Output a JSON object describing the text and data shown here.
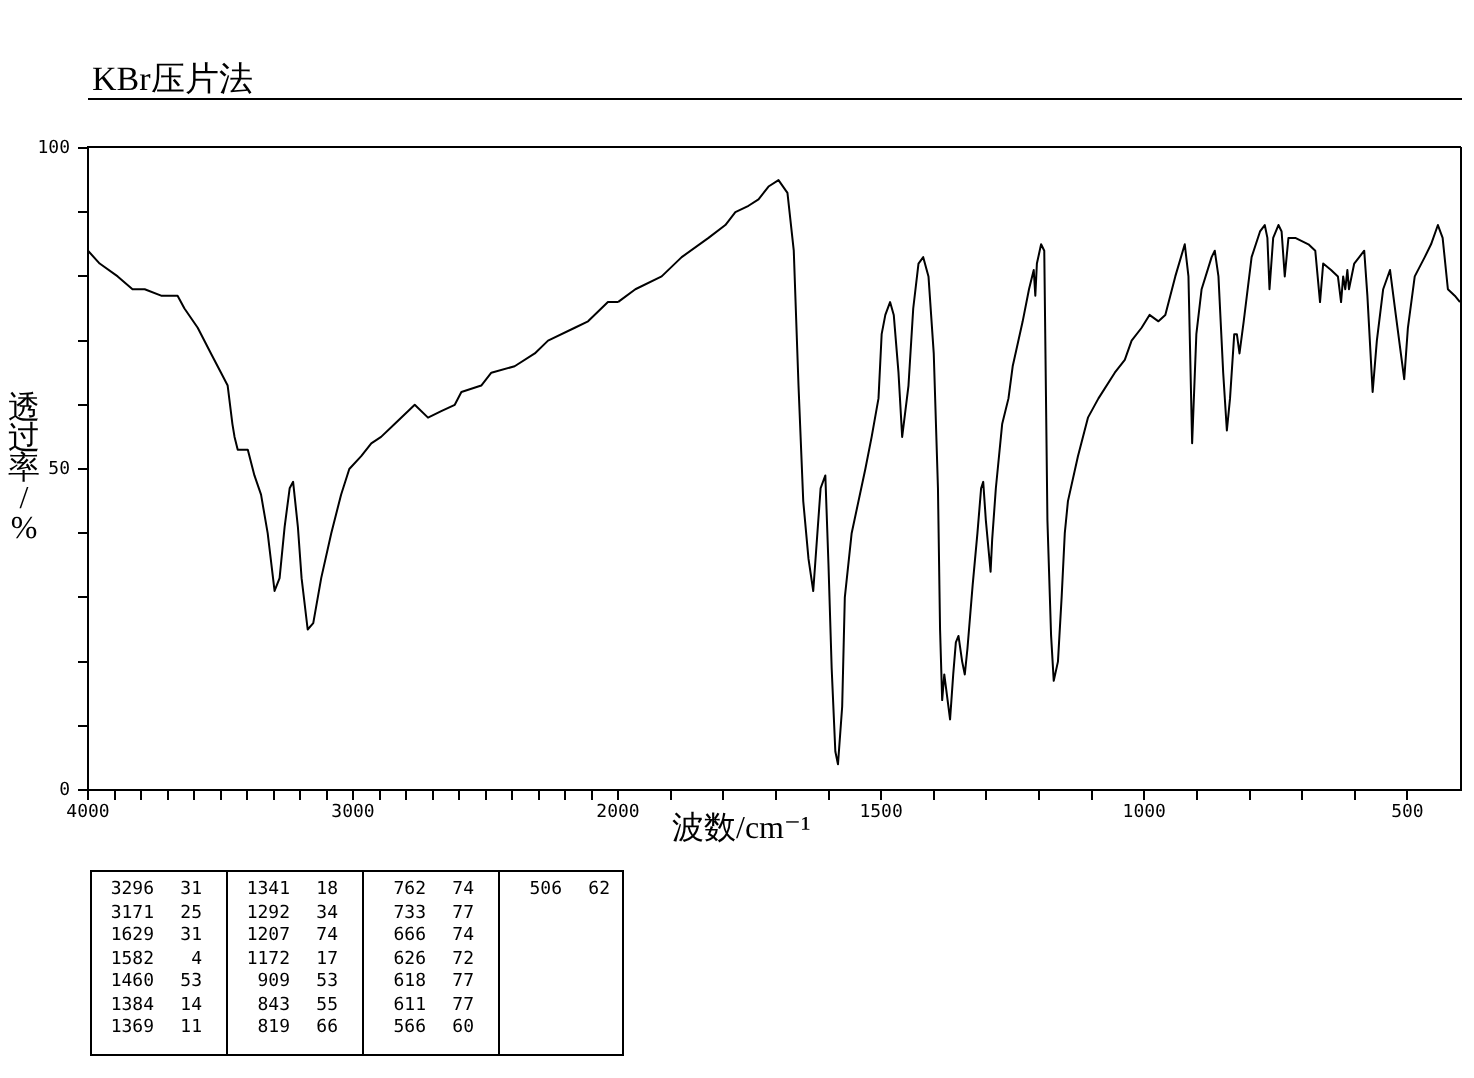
{
  "chart_data": [
    {
      "type": "line",
      "title": "KBr压片法",
      "ylabel": "透过率/%",
      "color": "#000000",
      "marker": "none",
      "line_style": "solid",
      "legend": false,
      "grid": false,
      "xlim": [
        4000,
        2000
      ],
      "ylim": [
        0,
        100
      ],
      "xticks": [
        4000,
        {
          "value": 3900,
          "label": null
        },
        {
          "value": 3800,
          "label": null
        },
        {
          "value": 3700,
          "label": null
        },
        {
          "value": 3600,
          "label": null
        },
        {
          "value": 3500,
          "label": null
        },
        {
          "value": 3400,
          "label": null
        },
        {
          "value": 3300,
          "label": null
        },
        {
          "value": 3200,
          "label": null
        },
        {
          "value": 3100,
          "label": null
        },
        3000,
        {
          "value": 2900,
          "label": null
        },
        {
          "value": 2800,
          "label": null
        },
        {
          "value": 2700,
          "label": null
        },
        {
          "value": 2600,
          "label": null
        },
        {
          "value": 2500,
          "label": null
        },
        {
          "value": 2400,
          "label": null
        },
        {
          "value": 2300,
          "label": null
        },
        {
          "value": 2200,
          "label": null
        },
        {
          "value": 2100,
          "label": null
        },
        2000
      ],
      "yticks": [
        0,
        {
          "value": 10,
          "label": null
        },
        {
          "value": 20,
          "label": null
        },
        {
          "value": 30,
          "label": null
        },
        {
          "value": 40,
          "label": null
        },
        50,
        {
          "value": 60,
          "label": null
        },
        {
          "value": 70,
          "label": null
        },
        {
          "value": 80,
          "label": null
        },
        {
          "value": 90,
          "label": null
        },
        100
      ],
      "x": [
        4000,
        3956,
        3888,
        3832,
        3786,
        3724,
        3662,
        3636,
        3586,
        3536,
        3498,
        3473,
        3455,
        3447,
        3435,
        3397,
        3372,
        3347,
        3322,
        3296,
        3277,
        3258,
        3239,
        3226,
        3208,
        3194,
        3171,
        3150,
        3120,
        3082,
        3045,
        3014,
        2969,
        2931,
        2894,
        2843,
        2767,
        2717,
        2667,
        2616,
        2591,
        2516,
        2478,
        2390,
        2314,
        2264,
        2163,
        2113,
        2038,
        2000
      ],
      "values": [
        84,
        82,
        80,
        78,
        78,
        77,
        77,
        75,
        72,
        68,
        65,
        63,
        57,
        55,
        53,
        53,
        49,
        46,
        40,
        31,
        33,
        41,
        47,
        48,
        41,
        33,
        25,
        26,
        33,
        40,
        46,
        50,
        52,
        54,
        55,
        57,
        60,
        58,
        59,
        60,
        62,
        63,
        65,
        66,
        68,
        70,
        72,
        73,
        76,
        76
      ]
    },
    {
      "type": "line",
      "xlabel": "波数/cm⁻¹",
      "color": "#000000",
      "marker": "none",
      "line_style": "solid",
      "legend": false,
      "grid": false,
      "tick_labels": "x",
      "xlim": [
        2000,
        400
      ],
      "ylim": [
        0,
        100
      ],
      "xticks": [
        {
          "value": 1900,
          "label": null
        },
        {
          "value": 1800,
          "label": null
        },
        {
          "value": 1700,
          "label": null
        },
        {
          "value": 1600,
          "label": null
        },
        1500,
        {
          "value": 1400,
          "label": null
        },
        {
          "value": 1300,
          "label": null
        },
        {
          "value": 1200,
          "label": null
        },
        {
          "value": 1100,
          "label": null
        },
        1000,
        {
          "value": 900,
          "label": null
        },
        {
          "value": 800,
          "label": null
        },
        {
          "value": 700,
          "label": null
        },
        {
          "value": 600,
          "label": null
        },
        500
      ],
      "x": [
        2000,
        1967,
        1917,
        1879,
        1828,
        1796,
        1777,
        1752,
        1733,
        1714,
        1695,
        1678,
        1666,
        1657,
        1648,
        1638,
        1629,
        1615,
        1606,
        1600,
        1594,
        1587,
        1582,
        1574,
        1569,
        1556,
        1530,
        1518,
        1505,
        1499,
        1492,
        1483,
        1476,
        1467,
        1460,
        1448,
        1439,
        1429,
        1420,
        1410,
        1400,
        1392,
        1388,
        1384,
        1380,
        1369,
        1363,
        1358,
        1353,
        1346,
        1341,
        1336,
        1326,
        1317,
        1310,
        1306,
        1301,
        1292,
        1289,
        1282,
        1270,
        1258,
        1250,
        1231,
        1219,
        1210,
        1207,
        1204,
        1196,
        1190,
        1184,
        1177,
        1172,
        1164,
        1157,
        1151,
        1145,
        1126,
        1107,
        1087,
        1056,
        1037,
        1024,
        1005,
        990,
        973,
        960,
        941,
        923,
        916,
        909,
        901,
        891,
        872,
        866,
        859,
        850,
        843,
        837,
        829,
        824,
        819,
        811,
        796,
        780,
        771,
        766,
        762,
        755,
        745,
        739,
        733,
        726,
        713,
        688,
        675,
        666,
        660,
        645,
        632,
        626,
        622,
        618,
        614,
        611,
        601,
        582,
        576,
        566,
        558,
        546,
        533,
        522,
        506,
        499,
        486,
        467,
        455,
        442,
        433,
        423,
        410,
        400
      ],
      "values": [
        76,
        78,
        80,
        83,
        86,
        88,
        90,
        91,
        92,
        94,
        95,
        93,
        84,
        63,
        45,
        36,
        31,
        47,
        49,
        35,
        19,
        6,
        4,
        13,
        30,
        40,
        50,
        55,
        61,
        71,
        74,
        76,
        74,
        65,
        55,
        63,
        75,
        82,
        83,
        80,
        68,
        47,
        25,
        14,
        18,
        11,
        18,
        23,
        24,
        20,
        18,
        22,
        32,
        40,
        47,
        48,
        42,
        34,
        39,
        47,
        57,
        61,
        66,
        73,
        78,
        81,
        77,
        82,
        85,
        84,
        42,
        24,
        17,
        20,
        30,
        40,
        45,
        52,
        58,
        61,
        65,
        67,
        70,
        72,
        74,
        73,
        74,
        80,
        85,
        80,
        54,
        71,
        78,
        83,
        84,
        80,
        65,
        56,
        61,
        71,
        71,
        68,
        73,
        83,
        87,
        88,
        86,
        78,
        86,
        88,
        87,
        80,
        86,
        86,
        85,
        84,
        76,
        82,
        81,
        80,
        76,
        80,
        78,
        81,
        78,
        82,
        84,
        77,
        62,
        70,
        78,
        81,
        74,
        64,
        72,
        80,
        83,
        85,
        88,
        86,
        78,
        77,
        76
      ]
    },
    {
      "type": "other",
      "categories": [
        "3296",
        "3171",
        "1629",
        "1582",
        "1460",
        "1384",
        "1369",
        "1341",
        "1292",
        "1207",
        "1172",
        "909",
        "843",
        "819",
        "762",
        "733",
        "666",
        "626",
        "618",
        "611",
        "566",
        "506"
      ],
      "values": [
        31,
        25,
        31,
        4,
        53,
        14,
        11,
        18,
        34,
        74,
        17,
        53,
        55,
        66,
        74,
        77,
        74,
        72,
        77,
        77,
        60,
        62
      ],
      "data_labels": true
    }
  ]
}
